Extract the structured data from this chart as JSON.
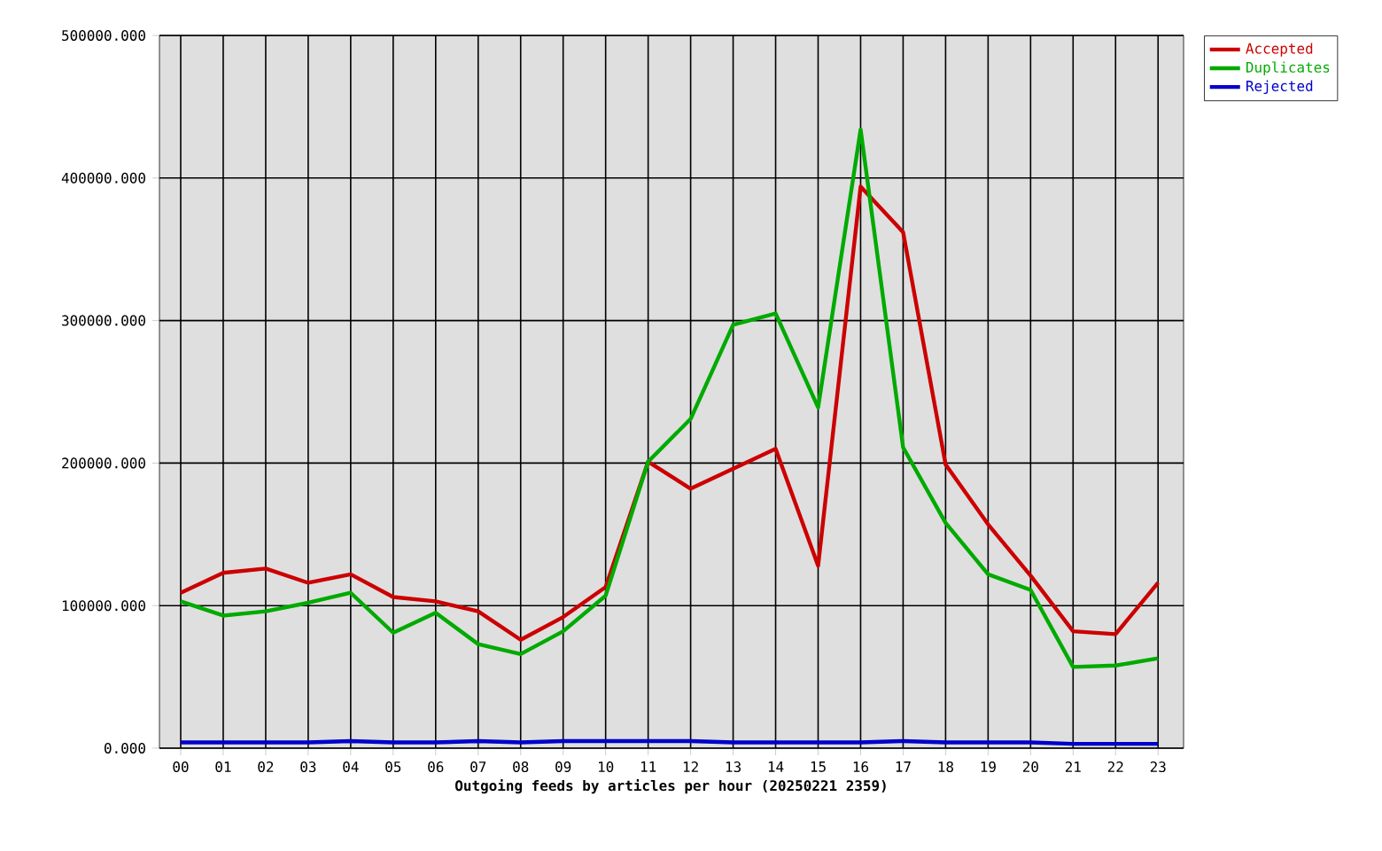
{
  "chart_data": {
    "type": "line",
    "xlabel": "Outgoing feeds by articles per hour (20250221 2359)",
    "categories": [
      "00",
      "01",
      "02",
      "03",
      "04",
      "05",
      "06",
      "07",
      "08",
      "09",
      "10",
      "11",
      "12",
      "13",
      "14",
      "15",
      "16",
      "17",
      "18",
      "19",
      "20",
      "21",
      "22",
      "23"
    ],
    "series": [
      {
        "name": "Accepted",
        "color": "#cc0000",
        "values": [
          109000,
          123000,
          126000,
          116000,
          122000,
          106000,
          103000,
          96000,
          76000,
          92000,
          113000,
          201000,
          182000,
          196000,
          210000,
          128000,
          394000,
          362000,
          199000,
          157000,
          121000,
          82000,
          80000,
          116000
        ]
      },
      {
        "name": "Duplicates",
        "color": "#00aa00",
        "values": [
          103000,
          93000,
          96000,
          102000,
          109000,
          81000,
          95000,
          73000,
          66000,
          82000,
          107000,
          201000,
          231000,
          297000,
          305000,
          239000,
          434000,
          211000,
          158000,
          122000,
          111000,
          57000,
          58000,
          63000
        ]
      },
      {
        "name": "Rejected",
        "color": "#0000cc",
        "values": [
          4000,
          4000,
          4000,
          4000,
          5000,
          4000,
          4000,
          5000,
          4000,
          5000,
          5000,
          5000,
          5000,
          4000,
          4000,
          4000,
          4000,
          5000,
          4000,
          4000,
          4000,
          3000,
          3000,
          3000
        ]
      }
    ],
    "ylim": [
      0,
      500000
    ],
    "yticks": [
      {
        "value": 0,
        "label": "0.000"
      },
      {
        "value": 100000,
        "label": "100000.000"
      },
      {
        "value": 200000,
        "label": "200000.000"
      },
      {
        "value": 300000,
        "label": "300000.000"
      },
      {
        "value": 400000,
        "label": "400000.000"
      },
      {
        "value": 500000,
        "label": "500000.000"
      }
    ],
    "grid": true,
    "legend": "top right"
  }
}
